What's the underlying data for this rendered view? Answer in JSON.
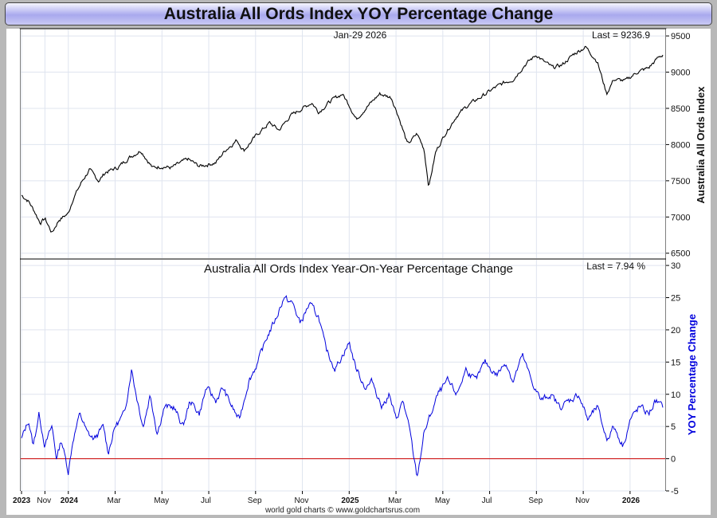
{
  "title": "Australia All Ords Index YOY Percentage Change",
  "footer": "world gold charts © www.goldchartsrus.com",
  "colors": {
    "price": "#000000",
    "yoy": "#0000dd",
    "zero": "#cc0000",
    "grid": "#dfe4ef"
  },
  "chart_data": [
    {
      "type": "line",
      "panel": "top",
      "date_label": "Jan-29  2026",
      "last_label": "Last = 9236.9",
      "ylabel": "Australia All Ords Index",
      "ylim": [
        6420,
        9600
      ],
      "yticks": [
        6500,
        7000,
        7500,
        8000,
        8500,
        9000,
        9500
      ],
      "x_labels": [
        {
          "label": "2023",
          "t": 0,
          "year": true
        },
        {
          "label": "Nov",
          "t": 1,
          "year": false
        },
        {
          "label": "2024",
          "t": 2,
          "year": true
        },
        {
          "label": "Mar",
          "t": 4,
          "year": false
        },
        {
          "label": "May",
          "t": 6,
          "year": false
        },
        {
          "label": "Jul",
          "t": 8,
          "year": false
        },
        {
          "label": "Sep",
          "t": 10,
          "year": false
        },
        {
          "label": "Nov",
          "t": 12,
          "year": false
        },
        {
          "label": "2025",
          "t": 14,
          "year": true
        },
        {
          "label": "Mar",
          "t": 16,
          "year": false
        },
        {
          "label": "May",
          "t": 18,
          "year": false
        },
        {
          "label": "Jul",
          "t": 20,
          "year": false
        },
        {
          "label": "Sep",
          "t": 22,
          "year": false
        },
        {
          "label": "Nov",
          "t": 24,
          "year": false
        },
        {
          "label": "2026",
          "t": 26,
          "year": true
        }
      ],
      "series": [
        {
          "name": "Australia All Ords Index",
          "points": [
            [
              0,
              7300
            ],
            [
              0.3,
              7220
            ],
            [
              0.55,
              7080
            ],
            [
              0.8,
              6920
            ],
            [
              1.0,
              6980
            ],
            [
              1.3,
              6780
            ],
            [
              1.6,
              6960
            ],
            [
              2.0,
              7050
            ],
            [
              2.2,
              7250
            ],
            [
              2.6,
              7500
            ],
            [
              2.9,
              7650
            ],
            [
              3.3,
              7500
            ],
            [
              3.6,
              7620
            ],
            [
              4.1,
              7680
            ],
            [
              4.6,
              7820
            ],
            [
              5.1,
              7920
            ],
            [
              5.6,
              7680
            ],
            [
              6.0,
              7700
            ],
            [
              6.4,
              7680
            ],
            [
              7.1,
              7800
            ],
            [
              7.6,
              7700
            ],
            [
              8.3,
              7750
            ],
            [
              8.7,
              7920
            ],
            [
              9.2,
              8060
            ],
            [
              9.5,
              7920
            ],
            [
              10.1,
              8150
            ],
            [
              10.6,
              8300
            ],
            [
              11.0,
              8200
            ],
            [
              11.5,
              8400
            ],
            [
              12.0,
              8500
            ],
            [
              12.4,
              8580
            ],
            [
              12.7,
              8450
            ],
            [
              13.2,
              8600
            ],
            [
              13.7,
              8700
            ],
            [
              14.0,
              8550
            ],
            [
              14.3,
              8350
            ],
            [
              14.7,
              8500
            ],
            [
              15.3,
              8700
            ],
            [
              15.8,
              8650
            ],
            [
              16.1,
              8400
            ],
            [
              16.5,
              8000
            ],
            [
              16.9,
              8150
            ],
            [
              17.2,
              7940
            ],
            [
              17.4,
              7420
            ],
            [
              17.7,
              7900
            ],
            [
              18.1,
              8150
            ],
            [
              18.6,
              8400
            ],
            [
              19.1,
              8550
            ],
            [
              19.6,
              8650
            ],
            [
              20.2,
              8780
            ],
            [
              20.6,
              8850
            ],
            [
              21.0,
              8900
            ],
            [
              21.5,
              9100
            ],
            [
              22.0,
              9240
            ],
            [
              22.3,
              9150
            ],
            [
              22.7,
              9060
            ],
            [
              23.1,
              9100
            ],
            [
              23.6,
              9250
            ],
            [
              24.1,
              9350
            ],
            [
              24.6,
              9150
            ],
            [
              25.0,
              8700
            ],
            [
              25.3,
              8900
            ],
            [
              25.8,
              8880
            ],
            [
              26.3,
              9000
            ],
            [
              26.8,
              9060
            ],
            [
              27.2,
              9200
            ],
            [
              27.4,
              9237
            ]
          ]
        }
      ]
    },
    {
      "type": "line",
      "panel": "bottom",
      "title": "Australia All Ords Index Year-On-Year Percentage Change",
      "last_label": "Last = 7.94 %",
      "ylabel": "YOY Percentage Change",
      "ylim": [
        -5,
        31
      ],
      "yticks": [
        -5,
        0,
        5,
        10,
        15,
        20,
        25,
        30
      ],
      "reference_line": 0,
      "series": [
        {
          "name": "YOY Percentage Change",
          "points": [
            [
              0,
              3
            ],
            [
              0.3,
              6
            ],
            [
              0.5,
              2
            ],
            [
              0.75,
              7
            ],
            [
              1.0,
              2
            ],
            [
              1.3,
              5
            ],
            [
              1.5,
              0
            ],
            [
              1.7,
              3
            ],
            [
              2.0,
              -2
            ],
            [
              2.2,
              3
            ],
            [
              2.5,
              7
            ],
            [
              2.8,
              4
            ],
            [
              3.1,
              3
            ],
            [
              3.5,
              5
            ],
            [
              3.7,
              1
            ],
            [
              4.0,
              5
            ],
            [
              4.4,
              7
            ],
            [
              4.7,
              14
            ],
            [
              4.9,
              10
            ],
            [
              5.2,
              5
            ],
            [
              5.5,
              10
            ],
            [
              5.8,
              4
            ],
            [
              6.1,
              8
            ],
            [
              6.5,
              8
            ],
            [
              6.9,
              5
            ],
            [
              7.2,
              9
            ],
            [
              7.6,
              7
            ],
            [
              7.9,
              11
            ],
            [
              8.3,
              9
            ],
            [
              8.6,
              11
            ],
            [
              9.0,
              8
            ],
            [
              9.3,
              6
            ],
            [
              9.7,
              12
            ],
            [
              10.1,
              15
            ],
            [
              10.5,
              19
            ],
            [
              10.9,
              22
            ],
            [
              11.2,
              25
            ],
            [
              11.6,
              24
            ],
            [
              11.9,
              21
            ],
            [
              12.3,
              24
            ],
            [
              12.7,
              22
            ],
            [
              13.0,
              17
            ],
            [
              13.4,
              14
            ],
            [
              13.7,
              16
            ],
            [
              14.0,
              18
            ],
            [
              14.3,
              14
            ],
            [
              14.7,
              11
            ],
            [
              15.0,
              12
            ],
            [
              15.4,
              8
            ],
            [
              15.7,
              10
            ],
            [
              16.0,
              6
            ],
            [
              16.3,
              9
            ],
            [
              16.6,
              4
            ],
            [
              16.9,
              -3
            ],
            [
              17.2,
              4
            ],
            [
              17.5,
              7
            ],
            [
              17.8,
              10
            ],
            [
              18.2,
              12
            ],
            [
              18.6,
              10
            ],
            [
              19.0,
              14
            ],
            [
              19.4,
              12
            ],
            [
              19.8,
              15
            ],
            [
              20.3,
              13
            ],
            [
              20.7,
              15
            ],
            [
              21.0,
              12
            ],
            [
              21.4,
              16
            ],
            [
              21.8,
              12
            ],
            [
              22.2,
              9
            ],
            [
              22.6,
              10
            ],
            [
              23.0,
              8
            ],
            [
              23.4,
              9
            ],
            [
              23.8,
              10
            ],
            [
              24.2,
              6
            ],
            [
              24.6,
              8
            ],
            [
              25.0,
              3
            ],
            [
              25.3,
              5
            ],
            [
              25.7,
              2
            ],
            [
              26.0,
              6
            ],
            [
              26.4,
              8
            ],
            [
              26.8,
              7
            ],
            [
              27.1,
              9
            ],
            [
              27.4,
              7.94
            ]
          ]
        }
      ]
    }
  ]
}
